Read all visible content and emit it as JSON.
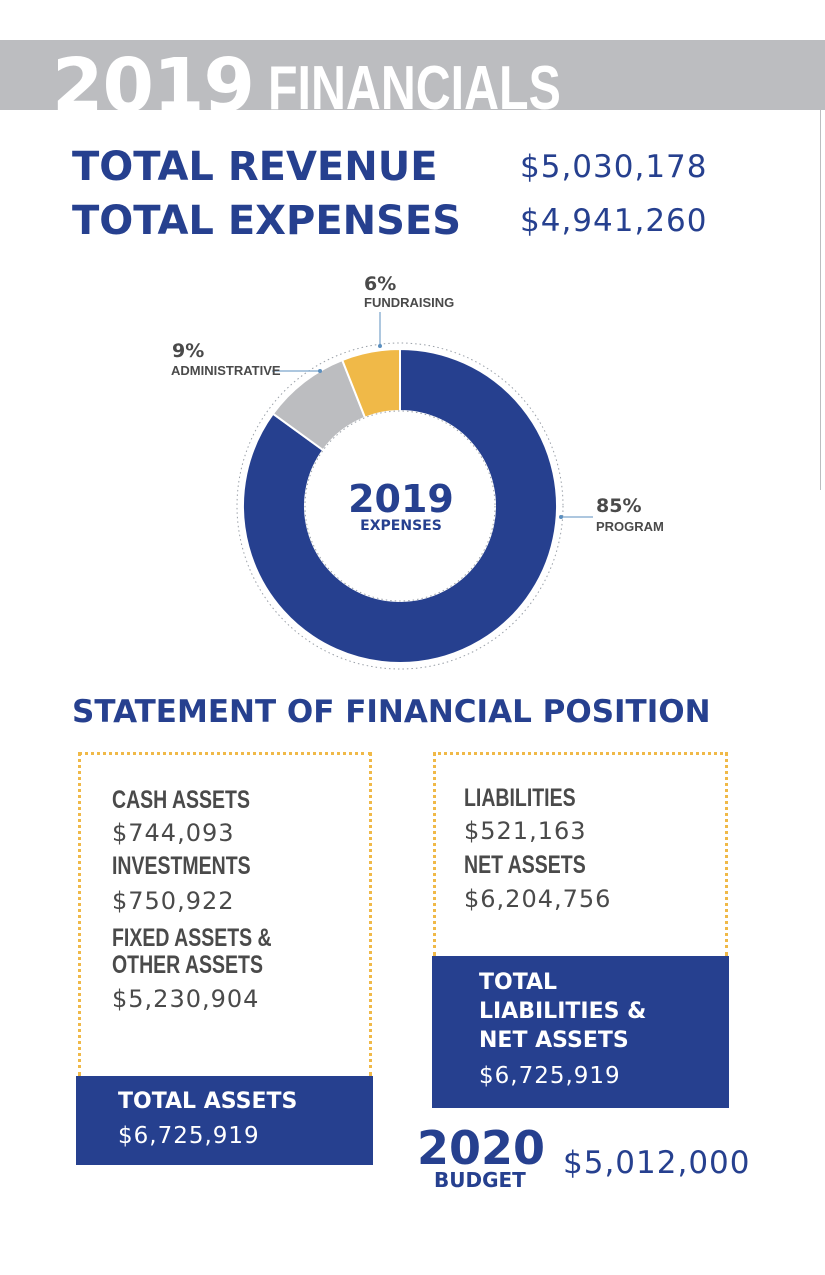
{
  "header": {
    "year": "2019",
    "title": "FINANCIALS"
  },
  "totals": {
    "revenue_label": "TOTAL REVENUE",
    "revenue_value": "$5,030,178",
    "expenses_label": "TOTAL EXPENSES",
    "expenses_value": "$4,941,260"
  },
  "chart_data": {
    "type": "pie",
    "style": "donut",
    "title": "2019",
    "subtitle": "EXPENSES",
    "start": "top, clockwise",
    "slices": [
      {
        "label": "PROGRAM",
        "pct_label": "85%",
        "value": 85,
        "color": "#26408f"
      },
      {
        "label": "ADMINISTRATIVE",
        "pct_label": "9%",
        "value": 9,
        "color": "#bcbdc0"
      },
      {
        "label": "FUNDRAISING",
        "pct_label": "6%",
        "value": 6,
        "color": "#f0b948"
      }
    ]
  },
  "statement": {
    "title": "STATEMENT OF FINANCIAL POSITION",
    "assets": {
      "items": [
        {
          "label": "CASH ASSETS",
          "value": "$744,093"
        },
        {
          "label": "INVESTMENTS",
          "value": "$750,922"
        },
        {
          "label_line1": "FIXED ASSETS &",
          "label_line2": "OTHER ASSETS",
          "value": "$5,230,904"
        }
      ],
      "total_label": "TOTAL ASSETS",
      "total_value": "$6,725,919"
    },
    "liabilities": {
      "items": [
        {
          "label": "LIABILITIES",
          "value": "$521,163"
        },
        {
          "label": "NET ASSETS",
          "value": "$6,204,756"
        }
      ],
      "total_label_line1": "TOTAL",
      "total_label_line2": "LIABILITIES &",
      "total_label_line3": "NET ASSETS",
      "total_value": "$6,725,919"
    }
  },
  "budget": {
    "year": "2020",
    "label": "BUDGET",
    "value": "$5,012,000"
  },
  "colors": {
    "navy": "#26408f",
    "gray": "#bcbdc0",
    "gold": "#f0b948",
    "text_gray": "#4a4a4a"
  }
}
